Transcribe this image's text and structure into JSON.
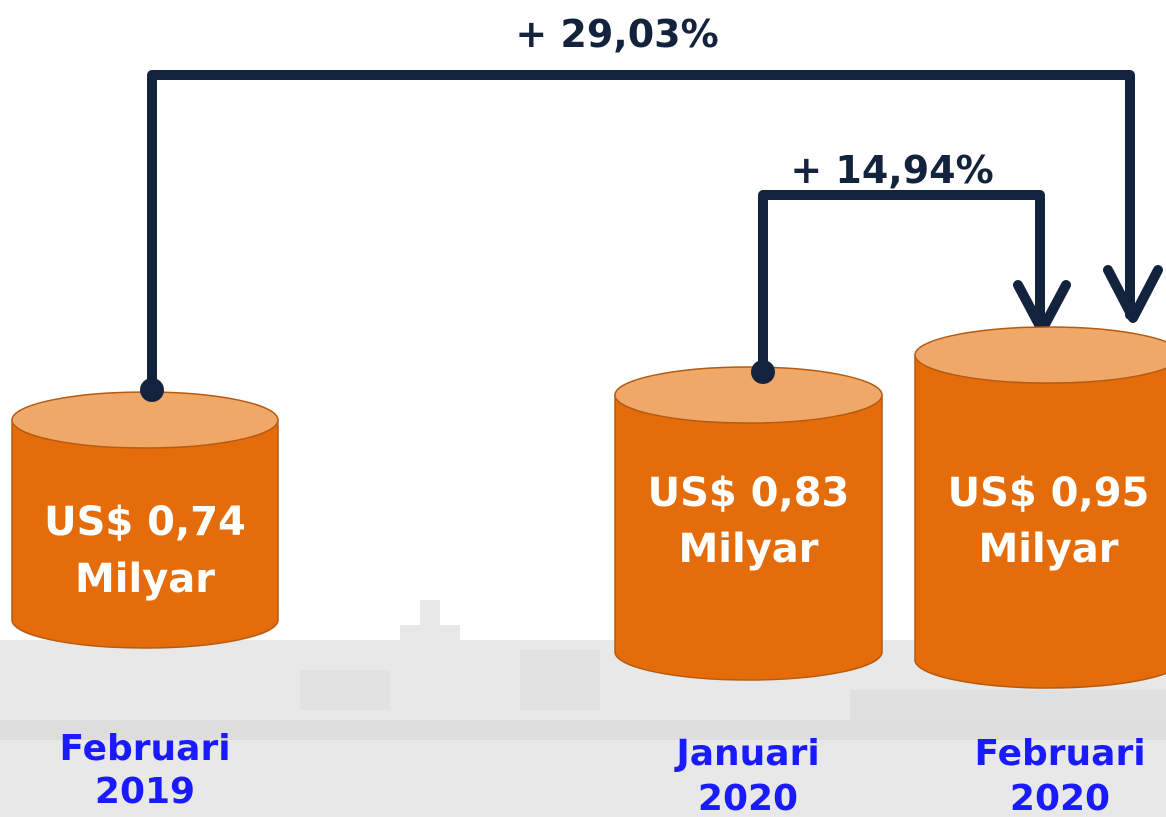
{
  "comparisons": [
    {
      "label": "+ 29,03%"
    },
    {
      "label": "+ 14,94%"
    }
  ],
  "periods": [
    {
      "value": "US$ 0,74",
      "unit": "Milyar",
      "month": "Februari",
      "year": "2019"
    },
    {
      "value": "US$ 0,83",
      "unit": "Milyar",
      "month": "Januari",
      "year": "2020"
    },
    {
      "value": "US$ 0,95",
      "unit": "Milyar",
      "month": "Februari",
      "year": "2020"
    }
  ]
}
